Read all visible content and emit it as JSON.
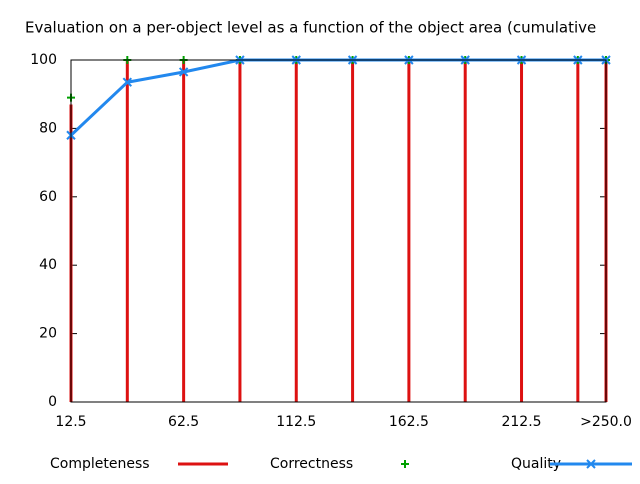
{
  "chart_data": {
    "type": "line",
    "title": "Evaluation on a per-object level as a function of the object area (cumulative",
    "x": [
      12.5,
      37.5,
      62.5,
      87.5,
      112.5,
      137.5,
      162.5,
      187.5,
      212.5,
      237.5,
      250
    ],
    "xlim": [
      12.5,
      250
    ],
    "xticks": [
      12.5,
      62.5,
      112.5,
      162.5,
      212.5,
      {
        "value": 250,
        "label": ">250.0"
      }
    ],
    "ylim": [
      0,
      100
    ],
    "yticks": [
      0,
      20,
      40,
      60,
      80,
      100
    ],
    "grid": false,
    "legend": "bottom",
    "series": [
      {
        "name": "Completeness",
        "color": "#dd1111",
        "style": "impulses",
        "values": [
          87,
          100,
          100,
          100,
          100,
          100,
          100,
          100,
          100,
          100,
          100
        ]
      },
      {
        "name": "Correctness",
        "color": "#00a000",
        "style": "points",
        "values": [
          89,
          100,
          100,
          100,
          100,
          100,
          100,
          100,
          100,
          100,
          100
        ]
      },
      {
        "name": "Quality",
        "color": "#2288ee",
        "style": "linespoints",
        "values": [
          78,
          93.5,
          96.5,
          100,
          100,
          100,
          100,
          100,
          100,
          100,
          100
        ]
      }
    ]
  }
}
